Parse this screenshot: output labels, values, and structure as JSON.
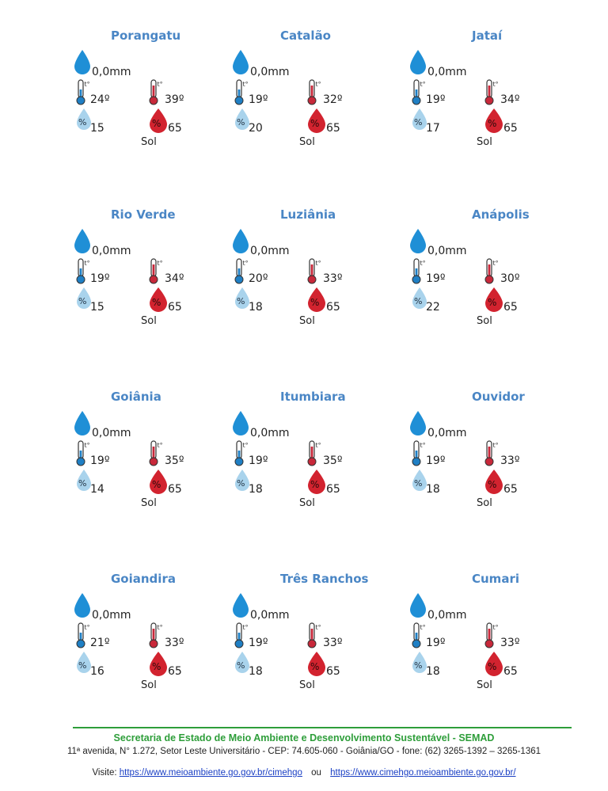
{
  "cities": [
    {
      "name": "Porangatu",
      "rain": "0,0mm",
      "temp_min": "24º",
      "temp_max": "39º",
      "hum_min": "15",
      "hum_max": "65",
      "condition": "Sol"
    },
    {
      "name": "Catalão",
      "rain": "0,0mm",
      "temp_min": "19º",
      "temp_max": "32º",
      "hum_min": "20",
      "hum_max": "65",
      "condition": "Sol"
    },
    {
      "name": "Jataí",
      "rain": "0,0mm",
      "temp_min": "19º",
      "temp_max": "34º",
      "hum_min": "17",
      "hum_max": "65",
      "condition": "Sol"
    },
    {
      "name": "Rio Verde",
      "rain": "0,0mm",
      "temp_min": "19º",
      "temp_max": "34º",
      "hum_min": "15",
      "hum_max": "65",
      "condition": "Sol"
    },
    {
      "name": "Luziânia",
      "rain": "0,0mm",
      "temp_min": "20º",
      "temp_max": "33º",
      "hum_min": "18",
      "hum_max": "65",
      "condition": "Sol"
    },
    {
      "name": "Anápolis",
      "rain": "0,0mm",
      "temp_min": "19º",
      "temp_max": "30º",
      "hum_min": "22",
      "hum_max": "65",
      "condition": "Sol"
    },
    {
      "name": "Goiânia",
      "rain": "0,0mm",
      "temp_min": "19º",
      "temp_max": "35º",
      "hum_min": "14",
      "hum_max": "65",
      "condition": "Sol"
    },
    {
      "name": "Itumbiara",
      "rain": "0,0mm",
      "temp_min": "19º",
      "temp_max": "35º",
      "hum_min": "18",
      "hum_max": "65",
      "condition": "Sol"
    },
    {
      "name": "Ouvidor",
      "rain": "0,0mm",
      "temp_min": "19º",
      "temp_max": "33º",
      "hum_min": "18",
      "hum_max": "65",
      "condition": "Sol"
    },
    {
      "name": "Goiandira",
      "rain": "0,0mm",
      "temp_min": "21º",
      "temp_max": "33º",
      "hum_min": "16",
      "hum_max": "65",
      "condition": "Sol"
    },
    {
      "name": "Três Ranchos",
      "rain": "0,0mm",
      "temp_min": "19º",
      "temp_max": "33º",
      "hum_min": "18",
      "hum_max": "65",
      "condition": "Sol"
    },
    {
      "name": "Cumari",
      "rain": "0,0mm",
      "temp_min": "19º",
      "temp_max": "33º",
      "hum_min": "18",
      "hum_max": "65",
      "condition": "Sol"
    }
  ],
  "icons": {
    "temp_glyph": "t°",
    "humidity_glyph": "%"
  },
  "footer": {
    "title": "Secretaria de Estado de Meio Ambiente e Desenvolvimento Sustentável - SEMAD",
    "address": "11ª avenida, N° 1.272, Setor Leste Universitário - CEP: 74.605-060 - Goiânia/GO - fone: (62) 3265-1392 – 3265-1361",
    "visit_label": "Visite:",
    "link1": "https://www.meioambiente.go.gov.br/cimehgo",
    "separator": "ou",
    "link2": "https://www.cimehgo.meioambiente.go.gov.br/"
  },
  "colors": {
    "city_name": "#4a86c5",
    "rain_drop": "#1f8fd6",
    "therm_cold": "#1f7fc4",
    "therm_hot": "#c8283a",
    "hum_low": "#a9d3ec",
    "hum_high": "#d2232f",
    "footer_green": "#2e9e3a",
    "link": "#1a3fc4"
  }
}
